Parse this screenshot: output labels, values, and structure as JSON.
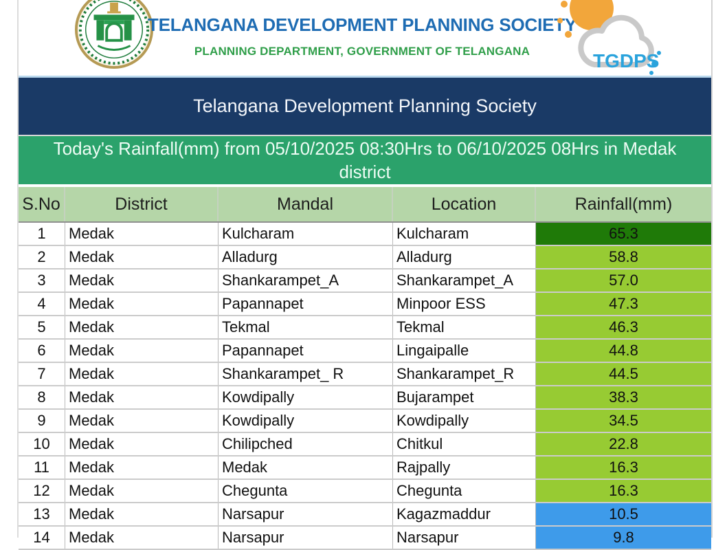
{
  "header": {
    "title": "TELANGANA DEVELOPMENT PLANNING SOCIETY",
    "subtitle": "PLANNING DEPARTMENT, GOVERNMENT OF TELANGANA",
    "logo_label": "TGDPS"
  },
  "banner": {
    "society_title": "Telangana Development Planning Society",
    "report_title": "Today's Rainfall(mm) from 05/10/2025 08:30Hrs to 06/10/2025 08Hrs in Medak district"
  },
  "table": {
    "columns": [
      "S.No",
      "District",
      "Mandal",
      "Location",
      "Rainfall(mm)"
    ],
    "rows": [
      {
        "sno": "1",
        "district": "Medak",
        "mandal": "Kulcharam",
        "location": "Kulcharam",
        "rainfall": "65.3",
        "level": "dark-green"
      },
      {
        "sno": "2",
        "district": "Medak",
        "mandal": "Alladurg",
        "location": "Alladurg",
        "rainfall": "58.8",
        "level": "green"
      },
      {
        "sno": "3",
        "district": "Medak",
        "mandal": "Shankarampet_A",
        "location": "Shankarampet_A",
        "rainfall": "57.0",
        "level": "green"
      },
      {
        "sno": "4",
        "district": "Medak",
        "mandal": "Papannapet",
        "location": "Minpoor ESS",
        "rainfall": "47.3",
        "level": "green"
      },
      {
        "sno": "5",
        "district": "Medak",
        "mandal": "Tekmal",
        "location": "Tekmal",
        "rainfall": "46.3",
        "level": "green"
      },
      {
        "sno": "6",
        "district": "Medak",
        "mandal": "Papannapet",
        "location": "Lingaipalle",
        "rainfall": "44.8",
        "level": "green"
      },
      {
        "sno": "7",
        "district": "Medak",
        "mandal": "Shankarampet_ R",
        "location": "Shankarampet_R",
        "rainfall": "44.5",
        "level": "green"
      },
      {
        "sno": "8",
        "district": "Medak",
        "mandal": "Kowdipally",
        "location": "Bujarampet",
        "rainfall": "38.3",
        "level": "green"
      },
      {
        "sno": "9",
        "district": "Medak",
        "mandal": "Kowdipally",
        "location": "Kowdipally",
        "rainfall": "34.5",
        "level": "green"
      },
      {
        "sno": "10",
        "district": "Medak",
        "mandal": "Chilipched",
        "location": "Chitkul",
        "rainfall": "22.8",
        "level": "green"
      },
      {
        "sno": "11",
        "district": "Medak",
        "mandal": "Medak",
        "location": "Rajpally",
        "rainfall": "16.3",
        "level": "green"
      },
      {
        "sno": "12",
        "district": "Medak",
        "mandal": "Chegunta",
        "location": "Chegunta",
        "rainfall": "16.3",
        "level": "green"
      },
      {
        "sno": "13",
        "district": "Medak",
        "mandal": "Narsapur",
        "location": "Kagazmaddur",
        "rainfall": "10.5",
        "level": "blue"
      },
      {
        "sno": "14",
        "district": "Medak",
        "mandal": "Narsapur",
        "location": "Narsapur",
        "rainfall": "9.8",
        "level": "blue"
      }
    ]
  },
  "colors": {
    "title_blue": "#1E6CB3",
    "subtitle_green": "#2F9E49",
    "tgdps_blue": "#2AA3DC",
    "sun_orange": "#F2A63B",
    "cloud_gray": "#C9C9C9",
    "banner_navy": "#1A3A66",
    "banner_green": "#2BA26B",
    "table_header_green": "#B5D6A8",
    "levels": {
      "dark-green": "#1F7A08",
      "green": "#97CB33",
      "blue": "#3E9BEA"
    }
  }
}
